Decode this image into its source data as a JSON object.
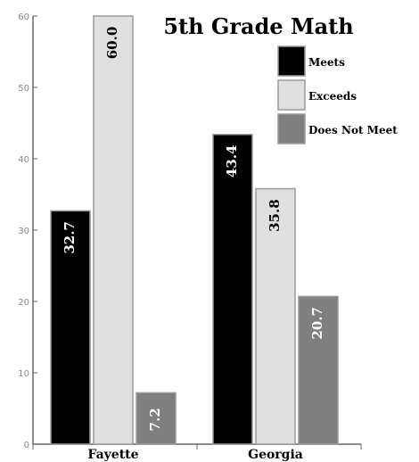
{
  "chart_data": {
    "type": "bar",
    "title": "5th Grade Math",
    "xlabel": "",
    "ylabel": "",
    "categories": [
      "Fayette",
      "Georgia"
    ],
    "ylim": [
      0,
      60
    ],
    "yticks": [
      0,
      10,
      20,
      30,
      40,
      50,
      60
    ],
    "legend_position": "top-right",
    "grid": false,
    "series": [
      {
        "name": "Meets",
        "values": [
          32.7,
          43.4
        ],
        "color": "#000000",
        "value_labels": [
          "32.7",
          "43.4"
        ],
        "label_color": "#ffffff"
      },
      {
        "name": "Exceeds",
        "values": [
          60.0,
          35.8
        ],
        "color": "#e0e0e0",
        "value_labels": [
          "60.0",
          "35.8"
        ],
        "label_color": "#000000"
      },
      {
        "name": "Does Not Meet",
        "values": [
          7.2,
          20.7
        ],
        "color": "#7f7f7f",
        "value_labels": [
          "7.2",
          "20.7"
        ],
        "label_color": "#ffffff"
      }
    ]
  }
}
